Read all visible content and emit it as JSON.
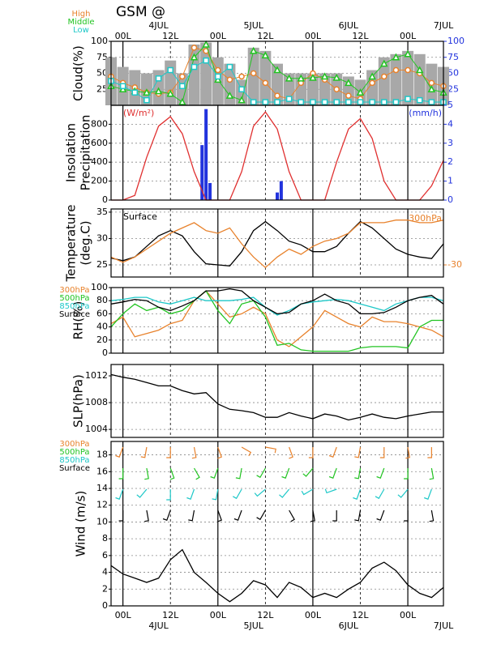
{
  "title": "GSM  @",
  "time": {
    "x": [
      -3,
      0,
      3,
      6,
      9,
      12,
      15,
      18,
      21,
      24,
      27,
      30,
      33,
      36,
      39,
      42,
      45,
      48,
      51,
      54,
      57,
      60,
      63,
      66,
      69,
      72,
      75,
      78,
      81
    ],
    "xlim": [
      -3,
      81
    ],
    "xticks": [
      {
        "value": 0,
        "label": "00L"
      },
      {
        "value": 12,
        "label": "12L"
      },
      {
        "value": 24,
        "label": "00L"
      },
      {
        "value": 36,
        "label": "12L"
      },
      {
        "value": 48,
        "label": "00L"
      },
      {
        "value": 60,
        "label": "12L"
      },
      {
        "value": 72,
        "label": "00L"
      }
    ],
    "dates": [
      {
        "value": 9,
        "label": "4JUL"
      },
      {
        "value": 33,
        "label": "5JUL"
      },
      {
        "value": 57,
        "label": "6JUL"
      },
      {
        "value": 81,
        "label": "7JUL"
      }
    ]
  },
  "chart_data": [
    {
      "type": "cloud",
      "ylabel": [
        "Cloud(%)"
      ],
      "ylim": [
        0,
        100
      ],
      "yticks": [
        25,
        50,
        75,
        100
      ],
      "y2lim": [
        0,
        100
      ],
      "y2ticks": [
        25,
        50,
        75,
        100
      ],
      "y2color": "#2233dd",
      "grid": true,
      "bars": {
        "color": "#a8a8a8",
        "values": [
          75,
          60,
          55,
          50,
          55,
          70,
          50,
          95,
          98,
          75,
          65,
          40,
          90,
          85,
          65,
          50,
          50,
          50,
          50,
          50,
          45,
          40,
          55,
          75,
          80,
          85,
          80,
          65,
          60
        ]
      },
      "series": [
        {
          "name": "High",
          "color": "#e8822c",
          "marker": "circle",
          "values": [
            45,
            35,
            28,
            20,
            18,
            20,
            45,
            90,
            85,
            55,
            40,
            45,
            50,
            35,
            15,
            10,
            35,
            50,
            40,
            25,
            15,
            10,
            35,
            45,
            55,
            55,
            50,
            35,
            30
          ]
        },
        {
          "name": "Middle",
          "color": "#22c422",
          "marker": "triangle",
          "values": [
            30,
            25,
            22,
            20,
            22,
            18,
            5,
            75,
            95,
            40,
            15,
            8,
            85,
            78,
            55,
            42,
            42,
            43,
            45,
            43,
            35,
            20,
            45,
            65,
            75,
            80,
            55,
            25,
            20
          ]
        },
        {
          "name": "Low",
          "color": "#1ec8c8",
          "marker": "square",
          "values": [
            38,
            30,
            20,
            8,
            42,
            55,
            30,
            60,
            70,
            45,
            60,
            25,
            5,
            5,
            5,
            10,
            5,
            5,
            5,
            5,
            5,
            5,
            5,
            5,
            5,
            10,
            8,
            5,
            5
          ]
        }
      ]
    },
    {
      "type": "insolation",
      "ylabel": [
        "Insolation",
        "Precipitation"
      ],
      "unit_left": "(W/m²)",
      "unit_right": "(mm/h)",
      "ylim": [
        0,
        1000
      ],
      "yticks": [
        0,
        200,
        400,
        600,
        800
      ],
      "y2lim": [
        0,
        5
      ],
      "y2ticks": [
        0,
        1,
        2,
        3,
        4,
        5
      ],
      "y2color": "#2233dd",
      "grid": true,
      "series": [
        {
          "color": "#e03030",
          "values": [
            0,
            0,
            50,
            450,
            780,
            880,
            700,
            300,
            0,
            0,
            0,
            300,
            780,
            930,
            750,
            300,
            0,
            0,
            0,
            400,
            750,
            860,
            650,
            200,
            0,
            0,
            0,
            150,
            420
          ]
        }
      ],
      "bars": {
        "color": "#2233dd",
        "axis": "y2",
        "x": [
          20,
          21,
          22,
          39,
          40
        ],
        "values": [
          2.9,
          4.8,
          0.9,
          0.4,
          1.0
        ]
      }
    },
    {
      "type": "line",
      "ylabel": [
        "Temperature",
        "(deg.C)"
      ],
      "ylim": [
        22.7,
        35.6
      ],
      "yticks": [
        25,
        30,
        35
      ],
      "y2lim": [
        -32.3,
        -19.4
      ],
      "y2ticks": [
        -30
      ],
      "y2color": "#e8822c",
      "grid": true,
      "series": [
        {
          "name": "Surface",
          "color": "#000000",
          "values": [
            26.3,
            25.8,
            26.5,
            28.5,
            30.5,
            31.5,
            30.5,
            27.5,
            25.2,
            25.0,
            24.8,
            27.5,
            31.5,
            33.2,
            31.5,
            29.5,
            28.8,
            27.5,
            27.5,
            28.5,
            31,
            33.2,
            32,
            30,
            28,
            27,
            26.5,
            26.2,
            29
          ]
        },
        {
          "name": "300hPa",
          "color": "#e8822c",
          "axis": "y2",
          "values": [
            -28.5,
            -29.5,
            -28.5,
            -27,
            -25.5,
            -24,
            -23,
            -22,
            -23.5,
            -24,
            -23,
            -26,
            -28.5,
            -30.5,
            -28.5,
            -27,
            -28,
            -26.5,
            -25.5,
            -25,
            -24,
            -22,
            -22,
            -22,
            -21.5,
            -21.5,
            -22,
            -22,
            -21.5
          ]
        }
      ]
    },
    {
      "type": "line",
      "ylabel": [
        "RH(%)"
      ],
      "ylim": [
        0,
        100
      ],
      "yticks": [
        0,
        20,
        40,
        60,
        80,
        100
      ],
      "grid": true,
      "legend": "left",
      "series": [
        {
          "name": "300hPa",
          "color": "#e8822c",
          "values": [
            45,
            55,
            25,
            30,
            35,
            45,
            50,
            80,
            95,
            75,
            55,
            60,
            70,
            60,
            20,
            10,
            25,
            40,
            65,
            55,
            45,
            40,
            55,
            48,
            48,
            45,
            40,
            35,
            25
          ]
        },
        {
          "name": "500hPa",
          "color": "#22c422",
          "values": [
            40,
            60,
            75,
            65,
            70,
            60,
            65,
            80,
            95,
            65,
            45,
            75,
            80,
            55,
            12,
            15,
            5,
            3,
            3,
            3,
            3,
            8,
            10,
            10,
            10,
            8,
            40,
            50,
            50
          ]
        },
        {
          "name": "850hPa",
          "color": "#1ec8c8",
          "values": [
            80,
            82,
            85,
            85,
            78,
            75,
            80,
            85,
            80,
            80,
            80,
            82,
            85,
            70,
            58,
            65,
            75,
            78,
            80,
            82,
            80,
            75,
            70,
            65,
            75,
            80,
            85,
            85,
            80
          ]
        },
        {
          "name": "Surface",
          "color": "#000000",
          "values": [
            75,
            78,
            82,
            80,
            70,
            65,
            72,
            80,
            95,
            95,
            98,
            95,
            80,
            70,
            60,
            62,
            75,
            80,
            90,
            80,
            75,
            60,
            60,
            62,
            70,
            80,
            85,
            88,
            75
          ]
        }
      ]
    },
    {
      "type": "line",
      "ylabel": [
        "SLP(hPa)"
      ],
      "ylim": [
        1002.8,
        1013.7
      ],
      "yticks": [
        1004,
        1008,
        1012
      ],
      "grid": true,
      "series": [
        {
          "color": "#000000",
          "values": [
            1012.2,
            1011.8,
            1011.5,
            1011,
            1010.5,
            1010.5,
            1009.8,
            1009.3,
            1009.5,
            1007.8,
            1007,
            1006.8,
            1006.5,
            1005.8,
            1005.8,
            1006.5,
            1006,
            1005.6,
            1006.3,
            1006,
            1005.4,
            1005.8,
            1006.3,
            1005.8,
            1005.6,
            1006,
            1006.3,
            1006.6,
            1006.6
          ]
        }
      ]
    },
    {
      "type": "wind",
      "ylabel": [
        "Wind  (m/s)"
      ],
      "ylim": [
        0,
        19.6
      ],
      "yticks": [
        0,
        2,
        4,
        6,
        8,
        10,
        12,
        14,
        16,
        18
      ],
      "grid": true,
      "legend": "left",
      "barb_x": [
        0,
        6,
        12,
        18,
        24,
        30,
        36,
        42,
        48,
        54,
        60,
        66,
        72,
        78
      ],
      "series": [
        {
          "name": "300hPa",
          "color": "#e8822c",
          "directions": [
            200,
            190,
            180,
            170,
            160,
            120,
            100,
            160,
            180,
            200,
            190,
            180,
            170,
            180
          ]
        },
        {
          "name": "500hPa",
          "color": "#22c422",
          "directions": [
            180,
            170,
            160,
            150,
            200,
            190,
            210,
            200,
            220,
            200,
            190,
            200,
            180,
            170
          ]
        },
        {
          "name": "850hPa",
          "color": "#1ec8c8",
          "directions": [
            200,
            220,
            180,
            200,
            190,
            210,
            230,
            220,
            240,
            250,
            200,
            210,
            220,
            200
          ]
        },
        {
          "name": "Surface",
          "color": "#000000",
          "directions": [
            180,
            170,
            200,
            190,
            160,
            200,
            210,
            150,
            170,
            180,
            190,
            200,
            180,
            170
          ],
          "values": [
            4.8,
            3.8,
            3.3,
            2.8,
            3.3,
            5.5,
            6.7,
            4,
            2.8,
            1.5,
            0.5,
            1.5,
            3,
            2.5,
            1,
            2.8,
            2.2,
            1,
            1.5,
            1,
            2,
            2.8,
            4.5,
            5.2,
            4.2,
            2.5,
            1.5,
            1,
            2.2
          ]
        }
      ]
    }
  ]
}
